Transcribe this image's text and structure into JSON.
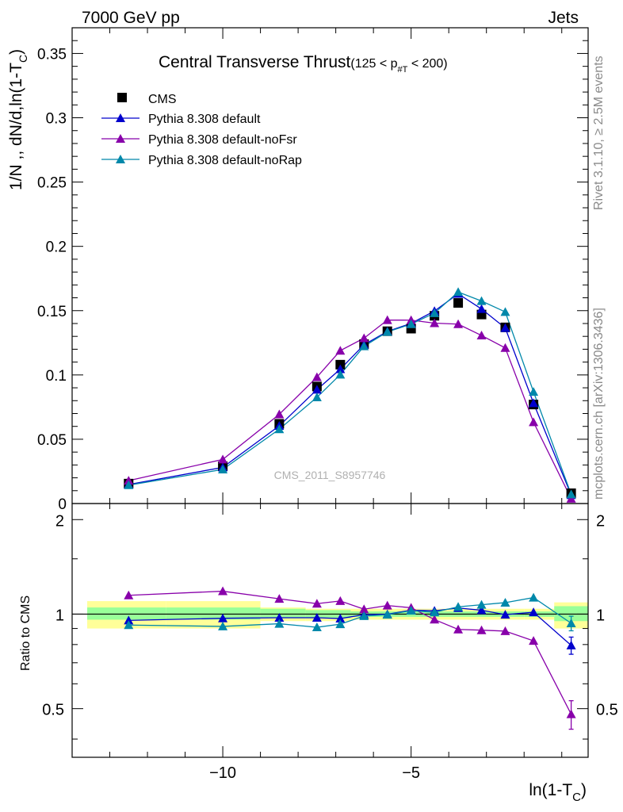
{
  "header": {
    "left": "7000 GeV pp",
    "right": "Jets"
  },
  "side_labels": {
    "rivet": "Rivet 3.1.10, ≥ 2.5M events",
    "mcplots": "mcplots.cern.ch [arXiv:1306.3436]"
  },
  "watermark": "CMS_2011_S8957746",
  "colors": {
    "cms": "#000000",
    "default": "#0000cc",
    "noFsr": "#8800aa",
    "noRap": "#0088aa",
    "band_inner": "#99ff99",
    "band_outer": "#ffff99"
  },
  "chart_data": [
    {
      "type": "line",
      "title_main": "Central Transverse Thrust",
      "title_range_prefix": "(125 < p",
      "title_range_sub": "#T",
      "title_range_suffix": " < 200)",
      "ylabel": "1/N ,, dN/d,ln(1-T",
      "ylabel_sub": "C",
      "ylabel_end": ")",
      "xlim": [
        -14.0,
        -0.3
      ],
      "ylim": [
        0,
        0.37
      ],
      "y_ticks": [
        {
          "v": 0,
          "label": "0"
        },
        {
          "v": 0.05,
          "label": "0.05"
        },
        {
          "v": 0.1,
          "label": "0.1"
        },
        {
          "v": 0.15,
          "label": "0.15"
        },
        {
          "v": 0.2,
          "label": "0.2"
        },
        {
          "v": 0.25,
          "label": "0.25"
        },
        {
          "v": 0.3,
          "label": "0.3"
        },
        {
          "v": 0.35,
          "label": "0.35"
        }
      ],
      "legend_position": "top-left",
      "series": [
        {
          "key": "cms",
          "name": "CMS",
          "marker": "square",
          "x": [
            -12.5,
            -10.0,
            -8.5,
            -7.5,
            -6.88,
            -6.25,
            -5.63,
            -5.0,
            -4.38,
            -3.75,
            -3.13,
            -2.5,
            -1.75,
            -0.75
          ],
          "y": [
            0.0155,
            0.029,
            0.062,
            0.091,
            0.108,
            0.124,
            0.134,
            0.136,
            0.146,
            0.156,
            0.147,
            0.137,
            0.077,
            0.008
          ]
        },
        {
          "key": "default",
          "name": "Pythia 8.308 default",
          "marker": "triangle",
          "x": [
            -12.5,
            -10.0,
            -8.5,
            -7.5,
            -6.88,
            -6.25,
            -5.63,
            -5.0,
            -4.38,
            -3.75,
            -3.13,
            -2.5,
            -1.75,
            -0.75
          ],
          "y": [
            0.0148,
            0.0281,
            0.0604,
            0.0886,
            0.1045,
            0.1235,
            0.1338,
            0.1401,
            0.1497,
            0.1631,
            0.1513,
            0.1365,
            0.0781,
            0.0066
          ]
        },
        {
          "key": "noFsr",
          "name": "Pythia 8.308 default-noFsr",
          "marker": "triangle",
          "x": [
            -12.5,
            -10.0,
            -8.5,
            -7.5,
            -6.88,
            -6.25,
            -5.63,
            -5.0,
            -4.38,
            -3.75,
            -3.13,
            -2.5,
            -1.75,
            -0.75
          ],
          "y": [
            0.0178,
            0.0343,
            0.0694,
            0.0983,
            0.1189,
            0.1286,
            0.1427,
            0.1426,
            0.1403,
            0.1395,
            0.1307,
            0.121,
            0.0633,
            0.0038
          ]
        },
        {
          "key": "noRap",
          "name": "Pythia 8.308 default-noRap",
          "marker": "triangle",
          "x": [
            -12.5,
            -10.0,
            -8.5,
            -7.5,
            -6.88,
            -6.25,
            -5.63,
            -5.0,
            -4.38,
            -3.75,
            -3.13,
            -2.5,
            -1.75,
            -0.75
          ],
          "y": [
            0.0143,
            0.0265,
            0.0578,
            0.0826,
            0.1003,
            0.1223,
            0.1335,
            0.1395,
            0.1481,
            0.1645,
            0.1575,
            0.149,
            0.0869,
            0.0072
          ]
        }
      ]
    },
    {
      "type": "line",
      "ylabel": "Ratio to CMS",
      "xlabel": "ln(1-T",
      "xlabel_sub": "C",
      "xlabel_end": ")",
      "xlim": [
        -14.0,
        -0.3
      ],
      "ylim": [
        0.35,
        2.25
      ],
      "x_ticks": [
        {
          "v": -10,
          "label": "−10"
        },
        {
          "v": -5,
          "label": "−5"
        }
      ],
      "y_ticks": [
        {
          "v": 0.5,
          "label": "0.5"
        },
        {
          "v": 1,
          "label": "1"
        },
        {
          "v": 2,
          "label": "2"
        }
      ],
      "bands": [
        {
          "x0": -13.6,
          "x1": -11.5,
          "inner": [
            0.96,
            1.05
          ],
          "outer": [
            0.9,
            1.1
          ]
        },
        {
          "x0": -11.5,
          "x1": -9.0,
          "inner": [
            0.96,
            1.05
          ],
          "outer": [
            0.9,
            1.1
          ]
        },
        {
          "x0": -9.0,
          "x1": -7.8,
          "inner": [
            0.97,
            1.04
          ],
          "outer": [
            0.95,
            1.05
          ]
        },
        {
          "x0": -7.8,
          "x1": -6.6,
          "inner": [
            0.97,
            1.03
          ],
          "outer": [
            0.95,
            1.04
          ]
        },
        {
          "x0": -6.6,
          "x1": -2.0,
          "inner": [
            0.98,
            1.02
          ],
          "outer": [
            0.96,
            1.04
          ]
        },
        {
          "x0": -2.0,
          "x1": -1.2,
          "inner": [
            0.98,
            1.02
          ],
          "outer": [
            0.96,
            1.04
          ]
        },
        {
          "x0": -1.2,
          "x1": -0.3,
          "inner": [
            0.95,
            1.06
          ],
          "outer": [
            0.9,
            1.09
          ]
        }
      ],
      "series": [
        {
          "key": "default",
          "name": "Pythia 8.308 default",
          "x": [
            -12.5,
            -10.0,
            -8.5,
            -7.5,
            -6.88,
            -6.25,
            -5.63,
            -5.0,
            -4.38,
            -3.75,
            -3.13,
            -2.5,
            -1.75,
            -0.75
          ],
          "y": [
            0.955,
            0.97,
            0.974,
            0.974,
            0.968,
            0.996,
            0.999,
            1.03,
            1.025,
            1.046,
            1.029,
            0.996,
            1.014,
            0.795
          ],
          "err": [
            0,
            0,
            0,
            0,
            0,
            0,
            0,
            0,
            0,
            0,
            0,
            0,
            0,
            0.05
          ]
        },
        {
          "key": "noFsr",
          "name": "Pythia 8.308 default-noFsr",
          "x": [
            -12.5,
            -10.0,
            -8.5,
            -7.5,
            -6.88,
            -6.25,
            -5.63,
            -5.0,
            -4.38,
            -3.75,
            -3.13,
            -2.5,
            -1.75,
            -0.75
          ],
          "y": [
            1.148,
            1.183,
            1.119,
            1.08,
            1.101,
            1.037,
            1.065,
            1.048,
            0.961,
            0.894,
            0.889,
            0.883,
            0.822,
            0.48
          ],
          "err": [
            0,
            0,
            0,
            0,
            0,
            0,
            0,
            0,
            0,
            0,
            0,
            0,
            0,
            0.05
          ]
        },
        {
          "key": "noRap",
          "name": "Pythia 8.308 default-noRap",
          "x": [
            -12.5,
            -10.0,
            -8.5,
            -7.5,
            -6.88,
            -6.25,
            -5.63,
            -5.0,
            -4.38,
            -3.75,
            -3.13,
            -2.5,
            -1.75,
            -0.75
          ],
          "y": [
            0.923,
            0.914,
            0.932,
            0.908,
            0.929,
            0.986,
            0.996,
            1.026,
            1.014,
            1.055,
            1.071,
            1.088,
            1.129,
            0.935
          ],
          "err": [
            0,
            0,
            0,
            0,
            0,
            0,
            0,
            0,
            0,
            0,
            0,
            0,
            0,
            0.05
          ]
        }
      ]
    }
  ]
}
